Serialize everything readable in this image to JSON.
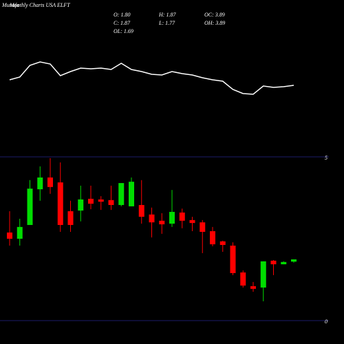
{
  "chart_data": [
    {
      "type": "line",
      "brand": "Munafa",
      "title": "Monthly Charts USA ELFT",
      "stats": [
        [
          "O: 1.80",
          "H: 1.87",
          "OC: 3.89"
        ],
        [
          "C: 1.87",
          "L: 1.77",
          "OH: 3.89"
        ],
        [
          "OL: 1.69"
        ]
      ],
      "values": [
        34,
        38,
        55,
        60,
        57,
        40,
        46,
        51,
        50,
        51,
        49,
        58,
        49,
        46,
        42,
        41,
        46,
        43,
        41,
        37,
        34,
        32,
        20,
        14,
        13,
        25,
        23,
        24,
        26
      ],
      "color": "#ffffff",
      "ylim": [
        0,
        150
      ]
    },
    {
      "type": "candlestick",
      "open": [
        2.69,
        2.5,
        2.92,
        4.01,
        4.37,
        4.22,
        3.34,
        3.36,
        3.72,
        3.7,
        3.68,
        3.53,
        3.49,
        3.53,
        3.24,
        3.05,
        2.96,
        3.3,
        3.07,
        3.0,
        2.73,
        2.42,
        2.29,
        1.47,
        1.05,
        1.01,
        1.83,
        1.72,
        1.8
      ],
      "high": [
        3.34,
        3.11,
        4.29,
        4.71,
        4.96,
        4.83,
        3.66,
        4.12,
        4.12,
        3.8,
        4.12,
        4.2,
        4.37,
        4.29,
        3.45,
        3.28,
        3.99,
        3.42,
        3.17,
        3.07,
        2.86,
        2.44,
        2.39,
        1.53,
        1.18,
        1.81,
        1.85,
        1.81,
        1.87
      ],
      "low": [
        2.29,
        2.29,
        2.92,
        3.66,
        3.87,
        2.71,
        2.71,
        3.03,
        3.4,
        3.38,
        3.38,
        3.49,
        3.49,
        2.96,
        2.54,
        2.65,
        2.86,
        2.82,
        2.73,
        2.06,
        2.27,
        2.1,
        1.39,
        1.01,
        0.88,
        0.59,
        1.39,
        1.72,
        1.77
      ],
      "close": [
        2.5,
        2.86,
        4.03,
        4.37,
        4.08,
        2.92,
        2.92,
        3.7,
        3.57,
        3.63,
        3.53,
        4.2,
        4.24,
        3.17,
        3.0,
        2.94,
        3.32,
        3.05,
        2.98,
        2.71,
        2.33,
        2.31,
        1.45,
        1.07,
        0.97,
        1.81,
        1.72,
        1.79,
        1.87
      ],
      "up_color": "#00dd00",
      "down_color": "#ff0000",
      "ylim": [
        0,
        5
      ],
      "yticks": [
        0,
        5
      ]
    }
  ]
}
